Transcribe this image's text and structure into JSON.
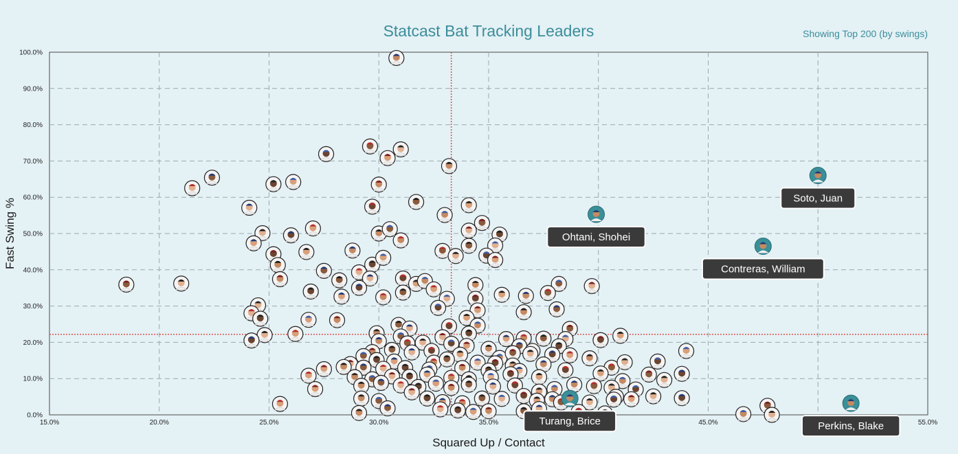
{
  "header": {
    "title": "Statcast Bat Tracking Leaders",
    "subtitle": "Showing Top 200 (by swings)"
  },
  "colors": {
    "background": "#e4f1f5",
    "title": "#3b8d9a",
    "subtitle": "#3b8d9a",
    "grid": "#9aa9ae",
    "reference_line": "#e0524b",
    "highlight_marker": "#3a8f98",
    "label_bg": "#3a3a3a"
  },
  "chart_data": {
    "type": "scatter",
    "title": "Statcast Bat Tracking Leaders",
    "xlabel": "Squared Up / Contact",
    "ylabel": "Fast Swing %",
    "xlim": [
      15,
      55
    ],
    "ylim": [
      0,
      100
    ],
    "x_ticks": [
      "15.0%",
      "20.0%",
      "25.0%",
      "30.0%",
      "35.0%",
      "40.0%",
      "45.0%",
      "50.0%",
      "55.0%"
    ],
    "y_ticks": [
      "0.0%",
      "10.0%",
      "20.0%",
      "30.0%",
      "40.0%",
      "50.0%",
      "60.0%",
      "70.0%",
      "80.0%",
      "90.0%",
      "100.0%"
    ],
    "grid": true,
    "reference_lines": {
      "x": 33.3,
      "y": 22.2
    },
    "highlighted": [
      {
        "name": "Soto, Juan",
        "x": 50.0,
        "y": 66.0
      },
      {
        "name": "Ohtani, Shohei",
        "x": 39.9,
        "y": 55.3
      },
      {
        "name": "Contreras, William",
        "x": 47.5,
        "y": 46.5
      },
      {
        "name": "Turang, Brice",
        "x": 38.7,
        "y": 4.5
      },
      {
        "name": "Perkins, Blake",
        "x": 51.5,
        "y": 3.2
      }
    ],
    "points": [
      [
        30.8,
        98.4
      ],
      [
        29.6,
        74.0
      ],
      [
        31.0,
        73.2
      ],
      [
        27.6,
        71.9
      ],
      [
        30.4,
        70.8
      ],
      [
        33.2,
        68.6
      ],
      [
        22.4,
        65.4
      ],
      [
        21.5,
        62.5
      ],
      [
        25.2,
        63.6
      ],
      [
        26.1,
        64.2
      ],
      [
        30.0,
        63.5
      ],
      [
        31.7,
        58.7
      ],
      [
        24.1,
        57.1
      ],
      [
        29.7,
        57.4
      ],
      [
        34.1,
        57.8
      ],
      [
        33.0,
        55.1
      ],
      [
        34.7,
        52.9
      ],
      [
        24.7,
        50.1
      ],
      [
        26.0,
        49.5
      ],
      [
        27.0,
        51.4
      ],
      [
        30.0,
        50.0
      ],
      [
        30.5,
        51.2
      ],
      [
        34.1,
        50.8
      ],
      [
        35.5,
        49.7
      ],
      [
        24.3,
        47.3
      ],
      [
        31.0,
        48.1
      ],
      [
        34.1,
        46.6
      ],
      [
        35.3,
        46.7
      ],
      [
        25.2,
        44.3
      ],
      [
        26.7,
        44.9
      ],
      [
        28.8,
        45.3
      ],
      [
        32.9,
        45.2
      ],
      [
        33.5,
        43.8
      ],
      [
        34.9,
        43.9
      ],
      [
        35.3,
        42.7
      ],
      [
        25.4,
        41.3
      ],
      [
        27.5,
        39.7
      ],
      [
        29.1,
        39.3
      ],
      [
        29.7,
        41.4
      ],
      [
        30.2,
        43.3
      ],
      [
        25.5,
        37.4
      ],
      [
        28.2,
        37.1
      ],
      [
        29.6,
        37.6
      ],
      [
        31.1,
        37.6
      ],
      [
        31.7,
        36.1
      ],
      [
        32.1,
        36.9
      ],
      [
        18.5,
        35.9
      ],
      [
        21.0,
        36.2
      ],
      [
        29.1,
        35.0
      ],
      [
        32.5,
        34.6
      ],
      [
        34.4,
        35.8
      ],
      [
        38.2,
        36.1
      ],
      [
        39.7,
        35.5
      ],
      [
        26.9,
        34.0
      ],
      [
        28.3,
        32.6
      ],
      [
        30.2,
        32.4
      ],
      [
        31.1,
        33.7
      ],
      [
        33.1,
        32.0
      ],
      [
        34.4,
        32.0
      ],
      [
        35.6,
        33.1
      ],
      [
        36.7,
        32.8
      ],
      [
        37.7,
        33.6
      ],
      [
        24.5,
        30.2
      ],
      [
        32.7,
        29.5
      ],
      [
        34.5,
        28.8
      ],
      [
        36.6,
        28.3
      ],
      [
        38.1,
        29.1
      ],
      [
        24.2,
        28.0
      ],
      [
        24.6,
        26.5
      ],
      [
        26.8,
        26.2
      ],
      [
        28.1,
        26.1
      ],
      [
        30.9,
        24.8
      ],
      [
        31.4,
        23.8
      ],
      [
        33.2,
        24.4
      ],
      [
        34.0,
        26.7
      ],
      [
        34.5,
        24.6
      ],
      [
        38.7,
        23.7
      ],
      [
        24.8,
        22.0
      ],
      [
        24.2,
        20.5
      ],
      [
        26.2,
        22.3
      ],
      [
        29.9,
        22.5
      ],
      [
        31.0,
        21.6
      ],
      [
        32.9,
        21.4
      ],
      [
        34.1,
        22.4
      ],
      [
        35.8,
        20.9
      ],
      [
        36.6,
        21.1
      ],
      [
        37.5,
        21.0
      ],
      [
        38.5,
        20.9
      ],
      [
        40.1,
        20.6
      ],
      [
        41.0,
        21.8
      ],
      [
        30.0,
        20.3
      ],
      [
        31.3,
        19.7
      ],
      [
        32.0,
        19.9
      ],
      [
        33.3,
        19.6
      ],
      [
        34.0,
        19.0
      ],
      [
        35.0,
        18.2
      ],
      [
        36.4,
        18.9
      ],
      [
        37.0,
        17.6
      ],
      [
        38.2,
        18.9
      ],
      [
        44.0,
        17.6
      ],
      [
        29.7,
        17.3
      ],
      [
        30.6,
        17.9
      ],
      [
        31.5,
        17.2
      ],
      [
        32.4,
        17.6
      ],
      [
        33.7,
        16.6
      ],
      [
        35.5,
        15.7
      ],
      [
        36.1,
        17.0
      ],
      [
        36.9,
        16.8
      ],
      [
        37.9,
        16.6
      ],
      [
        38.7,
        16.4
      ],
      [
        39.6,
        15.6
      ],
      [
        29.3,
        16.2
      ],
      [
        28.7,
        14.0
      ],
      [
        29.9,
        15.1
      ],
      [
        30.7,
        14.7
      ],
      [
        32.5,
        14.4
      ],
      [
        33.1,
        15.3
      ],
      [
        34.5,
        14.4
      ],
      [
        35.3,
        14.2
      ],
      [
        36.1,
        13.6
      ],
      [
        37.5,
        13.9
      ],
      [
        40.6,
        13.0
      ],
      [
        41.2,
        14.5
      ],
      [
        42.7,
        14.7
      ],
      [
        27.5,
        12.6
      ],
      [
        28.4,
        13.2
      ],
      [
        29.3,
        13.0
      ],
      [
        30.2,
        12.7
      ],
      [
        31.2,
        12.9
      ],
      [
        32.3,
        12.5
      ],
      [
        33.8,
        12.9
      ],
      [
        35.0,
        12.2
      ],
      [
        36.4,
        12.1
      ],
      [
        38.5,
        12.3
      ],
      [
        40.1,
        11.4
      ],
      [
        41.1,
        9.3
      ],
      [
        42.3,
        11.1
      ],
      [
        43.0,
        9.6
      ],
      [
        43.8,
        11.3
      ],
      [
        26.8,
        10.8
      ],
      [
        28.9,
        10.4
      ],
      [
        29.7,
        9.8
      ],
      [
        30.6,
        10.6
      ],
      [
        31.4,
        10.5
      ],
      [
        32.2,
        11.1
      ],
      [
        33.3,
        10.2
      ],
      [
        34.1,
        9.8
      ],
      [
        35.1,
        10.4
      ],
      [
        36.0,
        11.2
      ],
      [
        37.3,
        10.4
      ],
      [
        38.9,
        8.3
      ],
      [
        39.8,
        7.9
      ],
      [
        40.6,
        7.5
      ],
      [
        41.7,
        7.0
      ],
      [
        27.1,
        7.1
      ],
      [
        29.2,
        8.0
      ],
      [
        30.1,
        8.8
      ],
      [
        31.0,
        8.1
      ],
      [
        31.8,
        7.7
      ],
      [
        32.6,
        8.6
      ],
      [
        33.3,
        7.4
      ],
      [
        34.1,
        8.3
      ],
      [
        35.2,
        7.8
      ],
      [
        36.2,
        8.1
      ],
      [
        37.3,
        6.4
      ],
      [
        38.0,
        7.1
      ],
      [
        40.8,
        5.0
      ],
      [
        42.5,
        5.1
      ],
      [
        43.8,
        4.6
      ],
      [
        25.5,
        3.0
      ],
      [
        29.2,
        4.5
      ],
      [
        30.0,
        3.8
      ],
      [
        31.5,
        6.2
      ],
      [
        32.2,
        4.5
      ],
      [
        32.9,
        3.5
      ],
      [
        33.8,
        3.2
      ],
      [
        34.7,
        4.5
      ],
      [
        35.6,
        4.4
      ],
      [
        36.6,
        5.2
      ],
      [
        37.2,
        3.9
      ],
      [
        37.9,
        4.3
      ],
      [
        38.3,
        3.4
      ],
      [
        39.6,
        3.4
      ],
      [
        40.7,
        4.2
      ],
      [
        41.5,
        4.3
      ],
      [
        29.1,
        0.5
      ],
      [
        30.4,
        1.8
      ],
      [
        32.8,
        1.5
      ],
      [
        33.6,
        1.2
      ],
      [
        34.3,
        0.8
      ],
      [
        35.0,
        1.0
      ],
      [
        36.6,
        1.0
      ],
      [
        37.3,
        1.6
      ],
      [
        39.1,
        0.8
      ],
      [
        40.3,
        0.4
      ],
      [
        46.6,
        0.2
      ],
      [
        47.7,
        2.5
      ],
      [
        47.9,
        0.0
      ]
    ]
  }
}
